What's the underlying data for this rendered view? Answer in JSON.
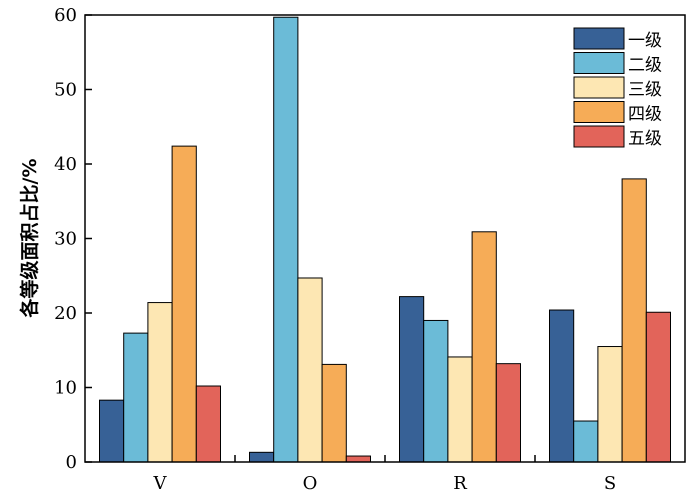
{
  "chart_data": {
    "type": "bar",
    "categories": [
      "V",
      "O",
      "R",
      "S"
    ],
    "series": [
      {
        "name": "一级",
        "color": "#376196",
        "values": [
          8.3,
          1.3,
          22.2,
          20.4
        ]
      },
      {
        "name": "二级",
        "color": "#6bbbd7",
        "values": [
          17.3,
          59.7,
          19.0,
          5.5
        ]
      },
      {
        "name": "三级",
        "color": "#fde7b3",
        "values": [
          21.4,
          24.7,
          14.1,
          15.5
        ]
      },
      {
        "name": "四级",
        "color": "#f6ac57",
        "values": [
          42.4,
          13.1,
          30.9,
          38.0
        ]
      },
      {
        "name": "五级",
        "color": "#e2645a",
        "values": [
          10.2,
          0.8,
          13.2,
          20.1
        ]
      }
    ],
    "ylabel": "各等级面积占比/%",
    "xlabel": "",
    "ylim": [
      0,
      60
    ],
    "yticks": [
      0,
      10,
      20,
      30,
      40,
      50,
      60
    ],
    "legend_position": "top-right",
    "grid": false
  }
}
